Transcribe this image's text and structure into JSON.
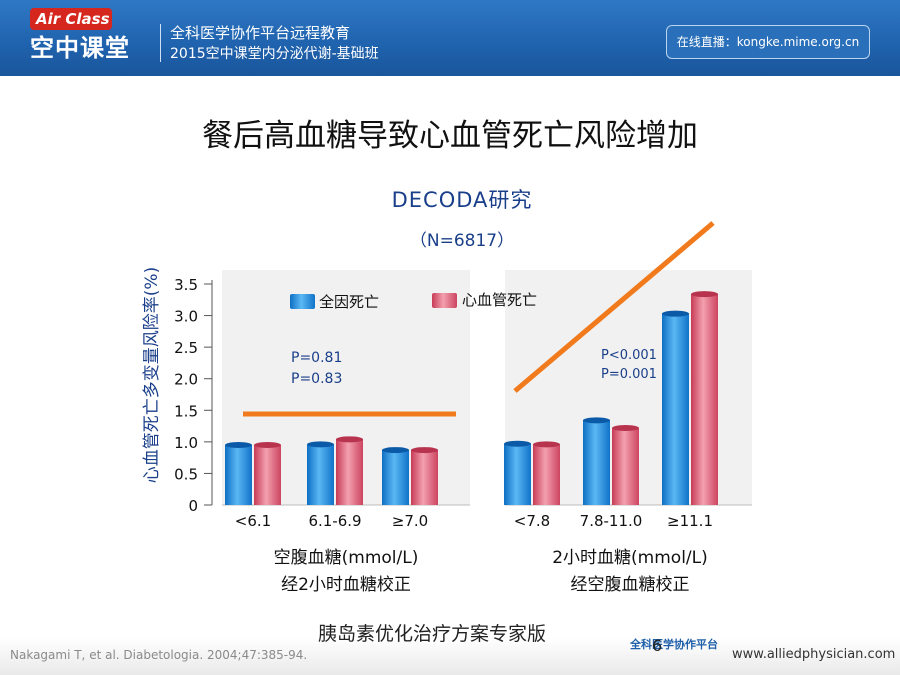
{
  "header": {
    "logo_top": "Air Class",
    "logo_bottom": "空中课堂",
    "title": "全科医学协作平台远程教育",
    "subtitle": "2015空中课堂内分泌代谢-基础班",
    "live": "在线直播：kongke.mime.org.cn"
  },
  "slide_title": "餐后高血糖导致心血管死亡风险增加",
  "footer": {
    "citation": "Nakagami T, et al. Diabetologia. 2004;47:385-94.",
    "watermark": "胰岛素优化治疗方案专家版",
    "page_number": "6",
    "logo_text": "全科医学协作平台",
    "website": "www.alliedphysician.com"
  },
  "colors": {
    "header_blue": "#1f62ad",
    "series_blue": "#1f8fe0",
    "series_pink": "#e0506a",
    "trend_orange": "#f07a1c",
    "text_blue": "#1a3f8a"
  },
  "chart_data": {
    "type": "bar",
    "title": "DECODA研究",
    "subtitle": "（N=6817）",
    "ylabel": "心血管死亡多变量风险率(%)",
    "ylim": [
      0,
      3.5
    ],
    "yticks": [
      "0",
      "0.5",
      "1.0",
      "1.5",
      "2.0",
      "2.5",
      "3.0",
      "3.5"
    ],
    "grid": false,
    "legend_position": "top",
    "series": [
      {
        "name": "全因死亡",
        "color": "#1f8fe0"
      },
      {
        "name": "心血管死亡",
        "color": "#e0506a"
      }
    ],
    "groups": [
      {
        "xlabel_line1": "空腹血糖(mmol/L)",
        "xlabel_line2": "经2小时血糖校正",
        "categories": [
          "<6.1",
          "6.1-6.9",
          "≥7.0"
        ],
        "all_cause": [
          0.95,
          0.96,
          0.87
        ],
        "cardiovascular": [
          0.95,
          1.04,
          0.87
        ],
        "p_values": [
          "P=0.81",
          "P=0.83"
        ],
        "trend": "flat"
      },
      {
        "xlabel_line1": "2小时血糖(mmol/L)",
        "xlabel_line2": "经空腹血糖校正",
        "categories": [
          "<7.8",
          "7.8-11.0",
          "≥11.1"
        ],
        "all_cause": [
          0.97,
          1.34,
          3.03
        ],
        "cardiovascular": [
          0.96,
          1.22,
          3.34
        ],
        "p_values": [
          "P<0.001",
          "P=0.001"
        ],
        "trend": "rising"
      }
    ]
  }
}
